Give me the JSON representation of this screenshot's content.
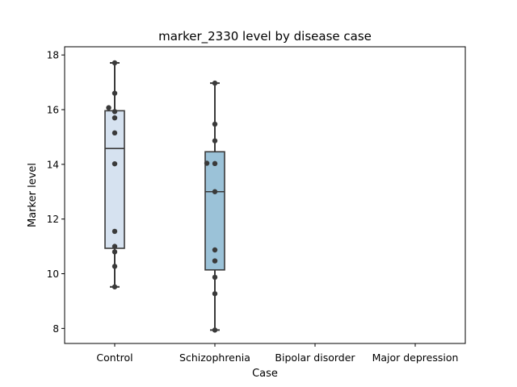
{
  "chart_data": {
    "type": "box",
    "title": "marker_2330 level by disease case",
    "xlabel": "Case",
    "ylabel": "Marker level",
    "categories": [
      "Control",
      "Schizophrenia",
      "Bipolar disorder",
      "Major depression"
    ],
    "ylim": [
      7.45,
      18.3
    ],
    "yticks": [
      8,
      10,
      12,
      14,
      16,
      18
    ],
    "grid": false,
    "legend": "none",
    "colors": {
      "box_fill": [
        "#d6e2f0",
        "#9bc2d8",
        "#9bc2d8",
        "#9bc2d8"
      ],
      "box_edge": "#3a3a3a",
      "points": "#3a3a3a"
    },
    "boxes": [
      {
        "category": "Control",
        "min": 9.52,
        "q1": 10.93,
        "median": 14.58,
        "q3": 15.96,
        "max": 17.71
      },
      {
        "category": "Schizophrenia",
        "min": 7.94,
        "q1": 10.14,
        "median": 13.0,
        "q3": 14.46,
        "max": 16.97
      }
    ],
    "points": [
      {
        "category": "Control",
        "values": [
          17.71,
          16.6,
          16.07,
          15.93,
          15.7,
          15.15,
          14.02,
          11.55,
          11.0,
          10.8,
          10.27,
          9.52
        ],
        "jitter": [
          0,
          0,
          -0.06,
          0,
          0,
          0,
          0,
          0,
          0,
          0,
          0,
          0
        ]
      },
      {
        "category": "Schizophrenia",
        "values": [
          16.97,
          15.47,
          14.86,
          14.04,
          14.03,
          13.0,
          10.87,
          10.47,
          9.87,
          9.27,
          7.94
        ],
        "jitter": [
          0,
          0,
          0,
          -0.08,
          0,
          0,
          0,
          0,
          0,
          0,
          0
        ]
      }
    ]
  }
}
